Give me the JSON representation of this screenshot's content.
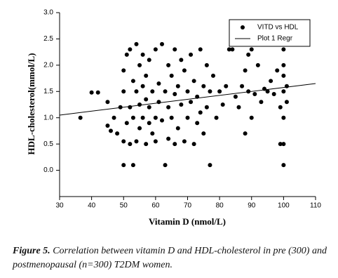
{
  "chart_data": {
    "type": "scatter",
    "x_label": "Vitamin D (nmol/L)",
    "y_label": "HDL-cholesterol(mmol/L)",
    "caption_label": "Figure 5.",
    "caption": "Correlation between vitamin D and HDL-cholesterol in pre (300) and postmenopausal (n=300) T2DM women.",
    "xlim": [
      30,
      110
    ],
    "xticks": [
      30,
      40,
      50,
      60,
      70,
      80,
      90,
      100,
      110
    ],
    "ylim": [
      -0.5,
      3.0
    ],
    "yticks": [
      {
        "value": 0,
        "label": "0.0"
      },
      {
        "value": 0.5,
        "label": "0.5"
      },
      {
        "value": 1,
        "label": "1.0"
      },
      {
        "value": 1.5,
        "label": "1.5"
      },
      {
        "value": 2,
        "label": "2.0"
      },
      {
        "value": 2.5,
        "label": "2.5"
      },
      {
        "value": 3,
        "label": "3.0"
      }
    ],
    "legend": "upper right",
    "series": [
      {
        "name": "VITD vs HDL",
        "color": "#000000",
        "mode": "markers",
        "x": [
          36.5,
          40,
          42,
          45,
          45,
          46,
          47,
          48,
          49,
          50,
          50,
          50,
          50,
          51,
          51,
          52,
          52,
          52,
          53,
          53,
          53,
          54,
          54,
          54,
          55,
          55,
          55,
          56,
          56,
          56,
          57,
          57,
          57,
          58,
          58,
          58,
          59,
          59,
          60,
          60,
          60,
          61,
          61,
          62,
          62,
          63,
          63,
          64,
          64,
          64,
          65,
          65,
          66,
          66,
          66,
          67,
          67,
          68,
          68,
          69,
          69,
          70,
          70,
          71,
          71,
          72,
          72,
          73,
          73,
          74,
          74,
          75,
          75,
          76,
          76,
          77,
          77,
          78,
          79,
          80,
          81,
          82,
          83,
          84,
          85,
          86,
          87,
          88,
          88,
          89,
          89,
          90,
          90,
          91,
          92,
          93,
          94,
          95,
          96,
          97,
          98,
          98,
          99,
          99,
          100,
          100,
          100,
          100,
          100,
          100,
          100,
          101,
          101
        ],
        "y": [
          1.0,
          1.48,
          1.48,
          1.3,
          0.85,
          0.75,
          1.0,
          0.7,
          1.2,
          0.1,
          0.55,
          1.5,
          1.9,
          2.2,
          0.9,
          1.2,
          0.5,
          2.3,
          1.0,
          1.7,
          0.1,
          2.4,
          1.5,
          0.55,
          2.0,
          1.25,
          0.8,
          2.2,
          1.0,
          1.6,
          0.5,
          1.8,
          1.35,
          2.1,
          1.2,
          0.9,
          1.5,
          0.7,
          2.3,
          1.0,
          0.55,
          1.65,
          1.3,
          2.4,
          0.95,
          1.5,
          0.1,
          2.0,
          1.2,
          0.6,
          1.8,
          1.0,
          2.3,
          1.45,
          0.5,
          1.6,
          0.8,
          2.1,
          1.25,
          1.9,
          0.55,
          1.5,
          1.0,
          2.2,
          1.3,
          1.7,
          0.5,
          0.9,
          1.4,
          2.3,
          1.1,
          1.6,
          0.7,
          2.0,
          1.2,
          0.1,
          1.5,
          1.8,
          1.0,
          1.5,
          1.25,
          1.6,
          2.3,
          2.3,
          1.4,
          1.2,
          1.6,
          0.7,
          1.9,
          1.5,
          2.2,
          1.0,
          2.3,
          1.45,
          2.0,
          1.3,
          1.55,
          1.5,
          1.7,
          1.45,
          1.9,
          2.4,
          1.2,
          0.5,
          0.1,
          0.5,
          1.0,
          1.5,
          1.8,
          2.0,
          2.3,
          1.6,
          1.3
        ]
      },
      {
        "name": "Plot 1 Regr",
        "color": "#000000",
        "mode": "line",
        "x": [
          30,
          110
        ],
        "y": [
          1.05,
          1.65
        ]
      }
    ]
  }
}
